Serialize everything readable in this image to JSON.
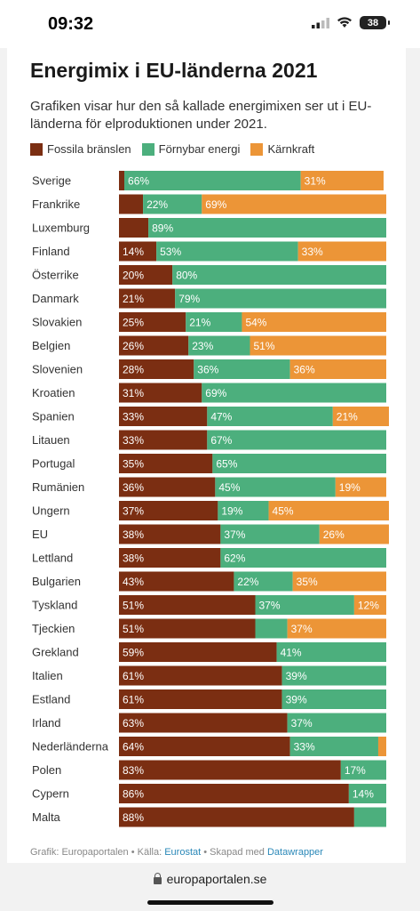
{
  "status": {
    "time": "09:32",
    "battery": "38"
  },
  "title": "Energimix i EU-länderna 2021",
  "subtitle": "Grafiken visar hur den så kallade energimixen ser ut i EU-länderna för elproduktionen under 2021.",
  "footer": {
    "prefix": "Grafik: Europaportalen • Källa: ",
    "source": "Eurostat",
    "middle": " • Skapad med ",
    "tool": "Datawrapper"
  },
  "url": "europaportalen.se",
  "chart_data": {
    "type": "bar",
    "orientation": "horizontal",
    "stacked": true,
    "colors": {
      "fossil": "#7b2e12",
      "renewable": "#4caf7d",
      "nuclear": "#ec9537"
    },
    "series": [
      {
        "name": "Fossila bränslen",
        "key": "fossil"
      },
      {
        "name": "Förnybar energi",
        "key": "renewable"
      },
      {
        "name": "Kärnkraft",
        "key": "nuclear"
      }
    ],
    "rows": [
      {
        "label": "Sverige",
        "fossil": 2,
        "fossil_label": "",
        "renewable": 66,
        "renewable_label": "66%",
        "nuclear": 31,
        "nuclear_label": "31%"
      },
      {
        "label": "Frankrike",
        "fossil": 9,
        "fossil_label": "",
        "renewable": 22,
        "renewable_label": "22%",
        "nuclear": 69,
        "nuclear_label": "69%"
      },
      {
        "label": "Luxemburg",
        "fossil": 11,
        "fossil_label": "",
        "renewable": 89,
        "renewable_label": "89%",
        "nuclear": 0,
        "nuclear_label": ""
      },
      {
        "label": "Finland",
        "fossil": 14,
        "fossil_label": "14%",
        "renewable": 53,
        "renewable_label": "53%",
        "nuclear": 33,
        "nuclear_label": "33%"
      },
      {
        "label": "Österrike",
        "fossil": 20,
        "fossil_label": "20%",
        "renewable": 80,
        "renewable_label": "80%",
        "nuclear": 0,
        "nuclear_label": ""
      },
      {
        "label": "Danmark",
        "fossil": 21,
        "fossil_label": "21%",
        "renewable": 79,
        "renewable_label": "79%",
        "nuclear": 0,
        "nuclear_label": ""
      },
      {
        "label": "Slovakien",
        "fossil": 25,
        "fossil_label": "25%",
        "renewable": 21,
        "renewable_label": "21%",
        "nuclear": 54,
        "nuclear_label": "54%"
      },
      {
        "label": "Belgien",
        "fossil": 26,
        "fossil_label": "26%",
        "renewable": 23,
        "renewable_label": "23%",
        "nuclear": 51,
        "nuclear_label": "51%"
      },
      {
        "label": "Slovenien",
        "fossil": 28,
        "fossil_label": "28%",
        "renewable": 36,
        "renewable_label": "36%",
        "nuclear": 36,
        "nuclear_label": "36%"
      },
      {
        "label": "Kroatien",
        "fossil": 31,
        "fossil_label": "31%",
        "renewable": 69,
        "renewable_label": "69%",
        "nuclear": 0,
        "nuclear_label": ""
      },
      {
        "label": "Spanien",
        "fossil": 33,
        "fossil_label": "33%",
        "renewable": 47,
        "renewable_label": "47%",
        "nuclear": 21,
        "nuclear_label": "21%"
      },
      {
        "label": "Litauen",
        "fossil": 33,
        "fossil_label": "33%",
        "renewable": 67,
        "renewable_label": "67%",
        "nuclear": 0,
        "nuclear_label": ""
      },
      {
        "label": "Portugal",
        "fossil": 35,
        "fossil_label": "35%",
        "renewable": 65,
        "renewable_label": "65%",
        "nuclear": 0,
        "nuclear_label": ""
      },
      {
        "label": "Rumänien",
        "fossil": 36,
        "fossil_label": "36%",
        "renewable": 45,
        "renewable_label": "45%",
        "nuclear": 19,
        "nuclear_label": "19%"
      },
      {
        "label": "Ungern",
        "fossil": 37,
        "fossil_label": "37%",
        "renewable": 19,
        "renewable_label": "19%",
        "nuclear": 45,
        "nuclear_label": "45%"
      },
      {
        "label": "EU",
        "fossil": 38,
        "fossil_label": "38%",
        "renewable": 37,
        "renewable_label": "37%",
        "nuclear": 26,
        "nuclear_label": "26%"
      },
      {
        "label": "Lettland",
        "fossil": 38,
        "fossil_label": "38%",
        "renewable": 62,
        "renewable_label": "62%",
        "nuclear": 0,
        "nuclear_label": ""
      },
      {
        "label": "Bulgarien",
        "fossil": 43,
        "fossil_label": "43%",
        "renewable": 22,
        "renewable_label": "22%",
        "nuclear": 35,
        "nuclear_label": "35%"
      },
      {
        "label": "Tyskland",
        "fossil": 51,
        "fossil_label": "51%",
        "renewable": 37,
        "renewable_label": "37%",
        "nuclear": 12,
        "nuclear_label": "12%"
      },
      {
        "label": "Tjeckien",
        "fossil": 51,
        "fossil_label": "51%",
        "renewable": 12,
        "renewable_label": "",
        "nuclear": 37,
        "nuclear_label": "37%"
      },
      {
        "label": "Grekland",
        "fossil": 59,
        "fossil_label": "59%",
        "renewable": 41,
        "renewable_label": "41%",
        "nuclear": 0,
        "nuclear_label": ""
      },
      {
        "label": "Italien",
        "fossil": 61,
        "fossil_label": "61%",
        "renewable": 39,
        "renewable_label": "39%",
        "nuclear": 0,
        "nuclear_label": ""
      },
      {
        "label": "Estland",
        "fossil": 61,
        "fossil_label": "61%",
        "renewable": 39,
        "renewable_label": "39%",
        "nuclear": 0,
        "nuclear_label": ""
      },
      {
        "label": "Irland",
        "fossil": 63,
        "fossil_label": "63%",
        "renewable": 37,
        "renewable_label": "37%",
        "nuclear": 0,
        "nuclear_label": ""
      },
      {
        "label": "Nederländerna",
        "fossil": 64,
        "fossil_label": "64%",
        "renewable": 33,
        "renewable_label": "33%",
        "nuclear": 3,
        "nuclear_label": ""
      },
      {
        "label": "Polen",
        "fossil": 83,
        "fossil_label": "83%",
        "renewable": 17,
        "renewable_label": "17%",
        "nuclear": 0,
        "nuclear_label": ""
      },
      {
        "label": "Cypern",
        "fossil": 86,
        "fossil_label": "86%",
        "renewable": 14,
        "renewable_label": "14%",
        "nuclear": 0,
        "nuclear_label": ""
      },
      {
        "label": "Malta",
        "fossil": 88,
        "fossil_label": "88%",
        "renewable": 12,
        "renewable_label": "",
        "nuclear": 0,
        "nuclear_label": ""
      }
    ],
    "xlim": [
      0,
      100
    ]
  }
}
